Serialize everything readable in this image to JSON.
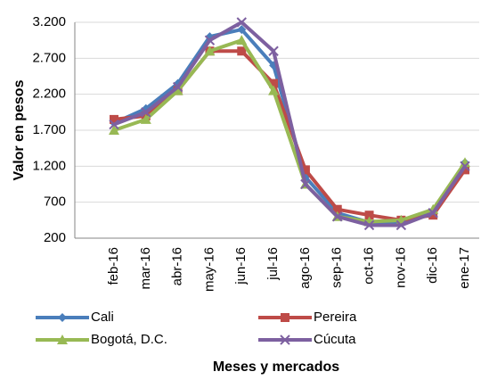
{
  "chart_data": {
    "type": "line",
    "y_label": "Valor en pesos",
    "x_label": "Meses  y mercados",
    "categories": [
      "feb-16",
      "mar-16",
      "abr-16",
      "may-16",
      "jun-16",
      "jul-16",
      "ago-16",
      "sep-16",
      "oct-16",
      "nov-16",
      "dic-16",
      "ene-17"
    ],
    "ylim": [
      200,
      3200
    ],
    "yticks": [
      200,
      700,
      {
        "value": 1200,
        "label": "1.200"
      },
      {
        "value": 1700,
        "label": "1.700"
      },
      {
        "value": 2200,
        "label": "2.200"
      },
      {
        "value": 2700,
        "label": "2.700"
      },
      {
        "value": 3200,
        "label": "3.200"
      }
    ],
    "grid": true,
    "series": [
      {
        "name": "Cali",
        "color": "#4a7ebb",
        "marker": "diamond",
        "values": [
          1800,
          2000,
          2350,
          3000,
          3100,
          2600,
          1050,
          550,
          420,
          420,
          550,
          1250
        ]
      },
      {
        "name": "Pereira",
        "color": "#be4b48",
        "marker": "square",
        "values": [
          1850,
          1900,
          2250,
          2800,
          2800,
          2350,
          1150,
          600,
          520,
          450,
          520,
          1150
        ]
      },
      {
        "name": "Bogotá, D.C.",
        "color": "#98b954",
        "marker": "triangle",
        "values": [
          1700,
          1850,
          2250,
          2800,
          2950,
          2250,
          950,
          500,
          430,
          450,
          600,
          1250
        ]
      },
      {
        "name": "Cúcuta",
        "color": "#7d60a0",
        "marker": "x",
        "values": [
          1780,
          1950,
          2300,
          2950,
          3200,
          2800,
          950,
          500,
          380,
          380,
          550,
          1200
        ]
      }
    ]
  }
}
